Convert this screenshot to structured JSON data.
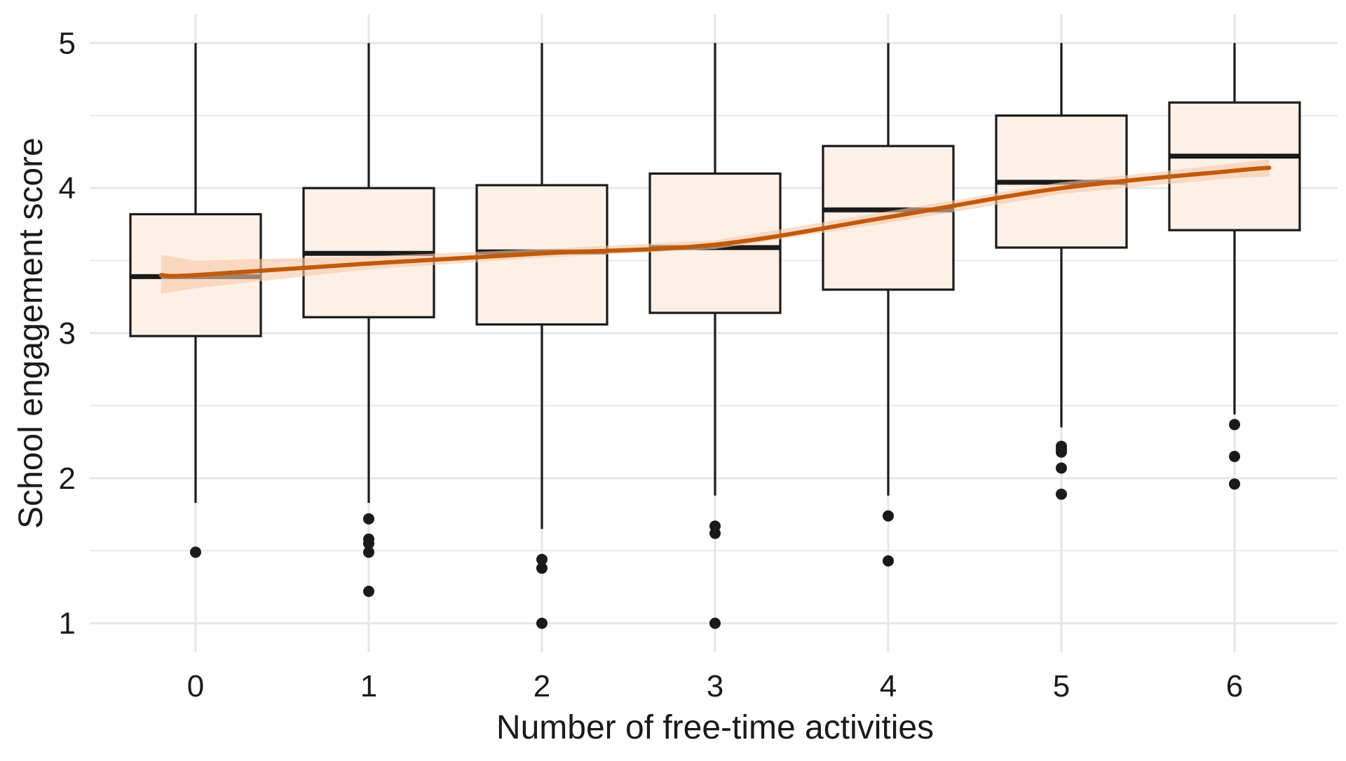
{
  "chart_data": {
    "type": "box",
    "title": "",
    "xlabel": "Number of free-time activities",
    "ylabel": "School engagement score",
    "categories": [
      "0",
      "1",
      "2",
      "3",
      "4",
      "5",
      "6"
    ],
    "x_ticks": [
      "0",
      "1",
      "2",
      "3",
      "4",
      "5",
      "6"
    ],
    "y_ticks": [
      1,
      2,
      3,
      4,
      5
    ],
    "ylim": [
      0.8,
      5.2
    ],
    "grid": true,
    "legend": "none",
    "boxes": [
      {
        "category": "0",
        "whisker_low": 1.83,
        "q1": 2.98,
        "median": 3.39,
        "q3": 3.82,
        "whisker_high": 5.0,
        "outliers": [
          1.49
        ]
      },
      {
        "category": "1",
        "whisker_low": 1.83,
        "q1": 3.11,
        "median": 3.55,
        "q3": 4.0,
        "whisker_high": 5.0,
        "outliers": [
          1.72,
          1.58,
          1.55,
          1.49,
          1.22
        ]
      },
      {
        "category": "2",
        "whisker_low": 1.65,
        "q1": 3.06,
        "median": 3.56,
        "q3": 4.02,
        "whisker_high": 5.0,
        "outliers": [
          1.44,
          1.38,
          1.0
        ]
      },
      {
        "category": "3",
        "whisker_low": 1.88,
        "q1": 3.14,
        "median": 3.59,
        "q3": 4.1,
        "whisker_high": 5.0,
        "outliers": [
          1.67,
          1.62,
          1.0
        ]
      },
      {
        "category": "4",
        "whisker_low": 1.88,
        "q1": 3.3,
        "median": 3.85,
        "q3": 4.29,
        "whisker_high": 5.0,
        "outliers": [
          1.74,
          1.43
        ]
      },
      {
        "category": "5",
        "whisker_low": 2.35,
        "q1": 3.59,
        "median": 4.04,
        "q3": 4.5,
        "whisker_high": 5.0,
        "outliers": [
          2.22,
          2.2,
          2.18,
          2.07,
          1.89
        ]
      },
      {
        "category": "6",
        "whisker_low": 2.44,
        "q1": 3.71,
        "median": 4.22,
        "q3": 4.59,
        "whisker_high": 5.0,
        "outliers": [
          2.37,
          2.15,
          1.96
        ]
      }
    ],
    "trend": {
      "type": "smooth",
      "x": [
        -0.2,
        0,
        1,
        2,
        3,
        4,
        5,
        6,
        6.2
      ],
      "y": [
        3.4,
        3.4,
        3.48,
        3.55,
        3.61,
        3.8,
        4.0,
        4.12,
        4.14
      ],
      "ci_low": [
        3.27,
        3.31,
        3.44,
        3.52,
        3.58,
        3.76,
        3.96,
        4.07,
        4.08
      ],
      "ci_high": [
        3.54,
        3.5,
        3.53,
        3.58,
        3.64,
        3.84,
        4.04,
        4.17,
        4.2
      ]
    },
    "colors": {
      "box_fill": "#fdf0e7",
      "box_stroke": "#1a1a1a",
      "trend_line": "#c05a0c",
      "trend_band": "#f9c8a6",
      "grid": "#e6e6e6"
    }
  }
}
